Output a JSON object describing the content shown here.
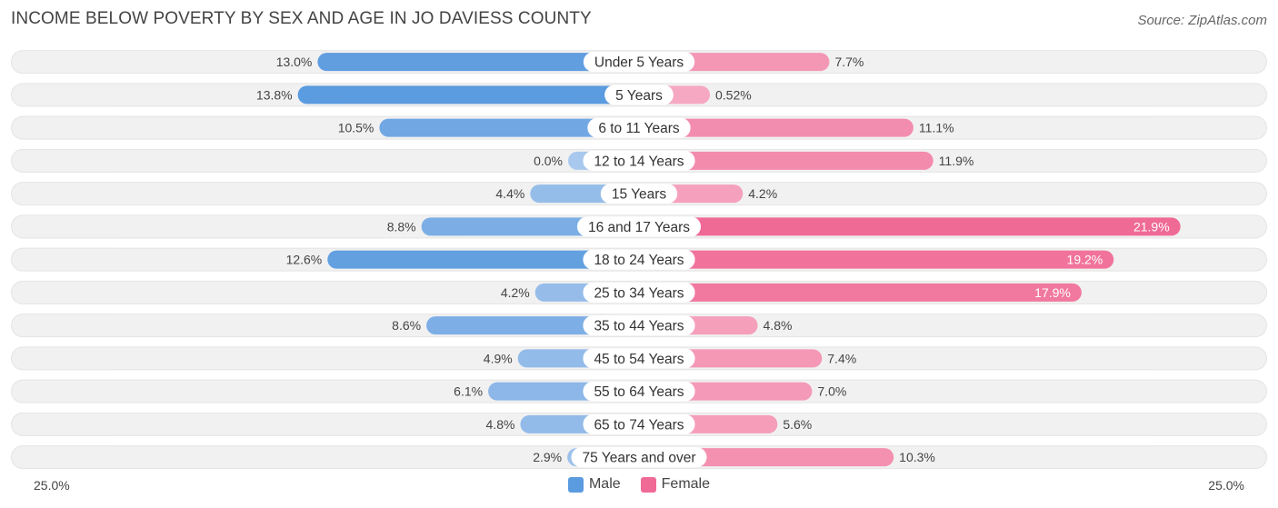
{
  "title": "INCOME BELOW POVERTY BY SEX AND AGE IN JO DAVIESS COUNTY",
  "source": "Source: ZipAtlas.com",
  "colors": {
    "male": "#5b9bdf",
    "male_light": "#a9c8ed",
    "female": "#f06a96",
    "female_light": "#f6a9c2",
    "row_bg": "#f1f1f1"
  },
  "chart_data": {
    "type": "bar",
    "orientation": "horizontal-diverging",
    "title": "INCOME BELOW POVERTY BY SEX AND AGE IN JO DAVIESS COUNTY",
    "categories": [
      "Under 5 Years",
      "5 Years",
      "6 to 11 Years",
      "12 to 14 Years",
      "15 Years",
      "16 and 17 Years",
      "18 to 24 Years",
      "25 to 34 Years",
      "35 to 44 Years",
      "45 to 54 Years",
      "55 to 64 Years",
      "65 to 74 Years",
      "75 Years and over"
    ],
    "series": [
      {
        "name": "Male",
        "values": [
          13.0,
          13.8,
          10.5,
          0.0,
          4.4,
          8.8,
          12.6,
          4.2,
          8.6,
          4.9,
          6.1,
          4.8,
          2.9
        ],
        "labels": [
          "13.0%",
          "13.8%",
          "10.5%",
          "0.0%",
          "4.4%",
          "8.8%",
          "12.6%",
          "4.2%",
          "8.6%",
          "4.9%",
          "6.1%",
          "4.8%",
          "2.9%"
        ]
      },
      {
        "name": "Female",
        "values": [
          7.7,
          0.52,
          11.1,
          11.9,
          4.2,
          21.9,
          19.2,
          17.9,
          4.8,
          7.4,
          7.0,
          5.6,
          10.3
        ],
        "labels": [
          "7.7%",
          "0.52%",
          "11.1%",
          "11.9%",
          "4.2%",
          "21.9%",
          "19.2%",
          "17.9%",
          "4.8%",
          "7.4%",
          "7.0%",
          "5.6%",
          "10.3%"
        ]
      }
    ],
    "xlim": [
      -25,
      25
    ],
    "axis_min_label": "25.0%",
    "axis_max_label": "25.0%",
    "legend": [
      "Male",
      "Female"
    ]
  }
}
